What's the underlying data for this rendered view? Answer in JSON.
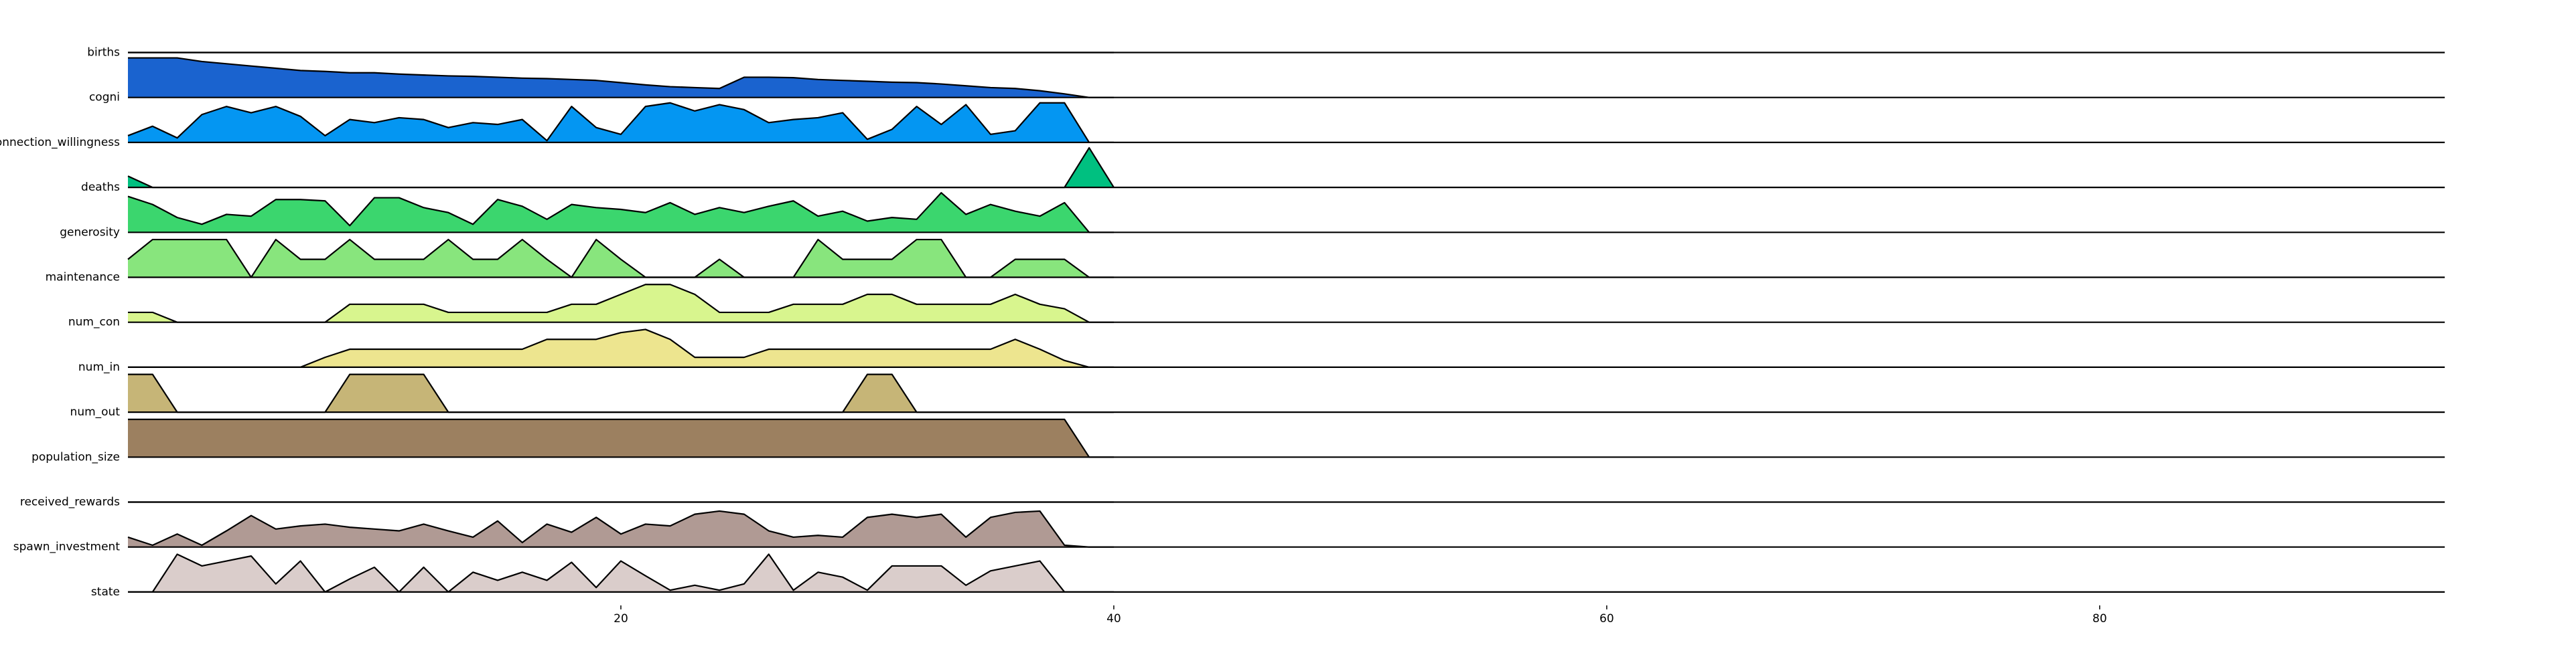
{
  "chart_data": {
    "type": "ridgeline",
    "x": [
      0,
      1,
      2,
      3,
      4,
      5,
      6,
      7,
      8,
      9,
      10,
      11,
      12,
      13,
      14,
      15,
      16,
      17,
      18,
      19,
      20,
      21,
      22,
      23,
      24,
      25,
      26,
      27,
      28,
      29,
      30,
      31,
      32,
      33,
      34,
      35,
      36,
      37,
      38,
      39,
      40
    ],
    "xlim": [
      0,
      94
    ],
    "xticks": [
      20,
      40,
      60,
      80
    ],
    "series": [
      {
        "name": "births",
        "color": "#1a63cf",
        "values": [
          0,
          0,
          0,
          0,
          0,
          0,
          0,
          0,
          0,
          0,
          0,
          0,
          0,
          0,
          0,
          0,
          0,
          0,
          0,
          0,
          0,
          0,
          0,
          0,
          0,
          0,
          0,
          0,
          0,
          0,
          0,
          0,
          0,
          0,
          0,
          0,
          0,
          0,
          0,
          0,
          0
        ]
      },
      {
        "name": "cogni",
        "color": "#1a63cf",
        "values": [
          0.88,
          0.88,
          0.88,
          0.8,
          0.75,
          0.7,
          0.65,
          0.6,
          0.58,
          0.55,
          0.55,
          0.52,
          0.5,
          0.48,
          0.47,
          0.45,
          0.43,
          0.42,
          0.4,
          0.38,
          0.33,
          0.28,
          0.24,
          0.22,
          0.2,
          0.45,
          0.45,
          0.44,
          0.4,
          0.38,
          0.36,
          0.34,
          0.33,
          0.3,
          0.26,
          0.22,
          0.2,
          0.15,
          0.08,
          0,
          0
        ]
      },
      {
        "name": "connection_willingness",
        "color": "#0496f2",
        "values": [
          0.15,
          0.36,
          0.1,
          0.62,
          0.8,
          0.66,
          0.8,
          0.58,
          0.15,
          0.51,
          0.44,
          0.55,
          0.51,
          0.33,
          0.44,
          0.4,
          0.51,
          0.04,
          0.8,
          0.33,
          0.18,
          0.8,
          0.88,
          0.7,
          0.84,
          0.73,
          0.44,
          0.51,
          0.55,
          0.66,
          0.07,
          0.29,
          0.8,
          0.4,
          0.84,
          0.18,
          0.26,
          0.88,
          0.88,
          0,
          0
        ]
      },
      {
        "name": "deaths",
        "color": "#00c080",
        "values": [
          0.25,
          0,
          0,
          0,
          0,
          0,
          0,
          0,
          0,
          0,
          0,
          0,
          0,
          0,
          0,
          0,
          0,
          0,
          0,
          0,
          0,
          0,
          0,
          0,
          0,
          0,
          0,
          0,
          0,
          0,
          0,
          0,
          0,
          0,
          0,
          0,
          0,
          0,
          0,
          0.88,
          0
        ]
      },
      {
        "name": "generosity",
        "color": "#3bd66e",
        "values": [
          0.8,
          0.62,
          0.33,
          0.18,
          0.4,
          0.36,
          0.73,
          0.73,
          0.7,
          0.15,
          0.77,
          0.77,
          0.55,
          0.44,
          0.18,
          0.73,
          0.58,
          0.29,
          0.62,
          0.55,
          0.51,
          0.44,
          0.66,
          0.4,
          0.55,
          0.44,
          0.58,
          0.7,
          0.36,
          0.47,
          0.25,
          0.33,
          0.29,
          0.88,
          0.4,
          0.62,
          0.47,
          0.36,
          0.66,
          0,
          0
        ]
      },
      {
        "name": "maintenance",
        "color": "#88e57d",
        "values": [
          0.4,
          0.84,
          0.84,
          0.84,
          0.84,
          0,
          0.84,
          0.4,
          0.4,
          0.84,
          0.4,
          0.4,
          0.4,
          0.84,
          0.4,
          0.4,
          0.84,
          0.4,
          0,
          0.84,
          0.4,
          0,
          0,
          0,
          0.4,
          0,
          0,
          0,
          0.84,
          0.4,
          0.4,
          0.4,
          0.84,
          0.84,
          0,
          0,
          0.4,
          0.4,
          0.4,
          0,
          0
        ]
      },
      {
        "name": "num_con",
        "color": "#d8f58e",
        "values": [
          0.22,
          0.22,
          0,
          0,
          0,
          0,
          0,
          0,
          0,
          0.4,
          0.4,
          0.4,
          0.4,
          0.22,
          0.22,
          0.22,
          0.22,
          0.22,
          0.4,
          0.4,
          0.62,
          0.84,
          0.84,
          0.62,
          0.22,
          0.22,
          0.22,
          0.4,
          0.4,
          0.4,
          0.62,
          0.62,
          0.4,
          0.4,
          0.4,
          0.4,
          0.62,
          0.4,
          0.3,
          0,
          0
        ]
      },
      {
        "name": "num_in",
        "color": "#ede58f",
        "values": [
          0,
          0,
          0,
          0,
          0,
          0,
          0,
          0,
          0.22,
          0.4,
          0.4,
          0.4,
          0.4,
          0.4,
          0.4,
          0.4,
          0.4,
          0.62,
          0.62,
          0.62,
          0.77,
          0.84,
          0.62,
          0.22,
          0.22,
          0.22,
          0.4,
          0.4,
          0.4,
          0.4,
          0.4,
          0.4,
          0.4,
          0.4,
          0.4,
          0.4,
          0.62,
          0.4,
          0.15,
          0,
          0
        ]
      },
      {
        "name": "num_out",
        "color": "#c6b577",
        "values": [
          0.84,
          0.84,
          0,
          0,
          0,
          0,
          0,
          0,
          0,
          0.84,
          0.84,
          0.84,
          0.84,
          0,
          0,
          0,
          0,
          0,
          0,
          0,
          0,
          0,
          0,
          0,
          0,
          0,
          0,
          0,
          0,
          0,
          0.84,
          0.84,
          0,
          0,
          0,
          0,
          0,
          0,
          0,
          0,
          0
        ]
      },
      {
        "name": "population_size",
        "color": "#9c8060",
        "values": [
          0.84,
          0.84,
          0.84,
          0.84,
          0.84,
          0.84,
          0.84,
          0.84,
          0.84,
          0.84,
          0.84,
          0.84,
          0.84,
          0.84,
          0.84,
          0.84,
          0.84,
          0.84,
          0.84,
          0.84,
          0.84,
          0.84,
          0.84,
          0.84,
          0.84,
          0.84,
          0.84,
          0.84,
          0.84,
          0.84,
          0.84,
          0.84,
          0.84,
          0.84,
          0.84,
          0.84,
          0.84,
          0.84,
          0.84,
          0,
          0
        ]
      },
      {
        "name": "received_rewards",
        "color": "#b09a94",
        "values": [
          0,
          0,
          0,
          0,
          0,
          0,
          0,
          0,
          0,
          0,
          0,
          0,
          0,
          0,
          0,
          0,
          0,
          0,
          0,
          0,
          0,
          0,
          0,
          0,
          0,
          0,
          0,
          0,
          0,
          0,
          0,
          0,
          0,
          0,
          0,
          0,
          0,
          0,
          0,
          0,
          0
        ]
      },
      {
        "name": "spawn_investment",
        "color": "#b09a94",
        "values": [
          0.22,
          0.04,
          0.29,
          0.04,
          0.36,
          0.7,
          0.4,
          0.47,
          0.51,
          0.44,
          0.4,
          0.36,
          0.51,
          0.36,
          0.22,
          0.58,
          0.1,
          0.51,
          0.33,
          0.66,
          0.29,
          0.51,
          0.47,
          0.73,
          0.8,
          0.73,
          0.36,
          0.22,
          0.26,
          0.22,
          0.66,
          0.73,
          0.66,
          0.73,
          0.22,
          0.66,
          0.77,
          0.8,
          0.04,
          0,
          0
        ]
      },
      {
        "name": "state",
        "color": "#dacdcb",
        "values": [
          0,
          0,
          0.84,
          0.58,
          0.69,
          0.8,
          0.18,
          0.69,
          0,
          0.29,
          0.55,
          0,
          0.55,
          0,
          0.44,
          0.26,
          0.44,
          0.26,
          0.66,
          0.1,
          0.69,
          0.36,
          0.04,
          0.15,
          0.04,
          0.18,
          0.84,
          0.04,
          0.44,
          0.33,
          0.04,
          0.58,
          0.58,
          0.58,
          0.15,
          0.47,
          0.58,
          0.69,
          0,
          0,
          0
        ]
      }
    ]
  }
}
